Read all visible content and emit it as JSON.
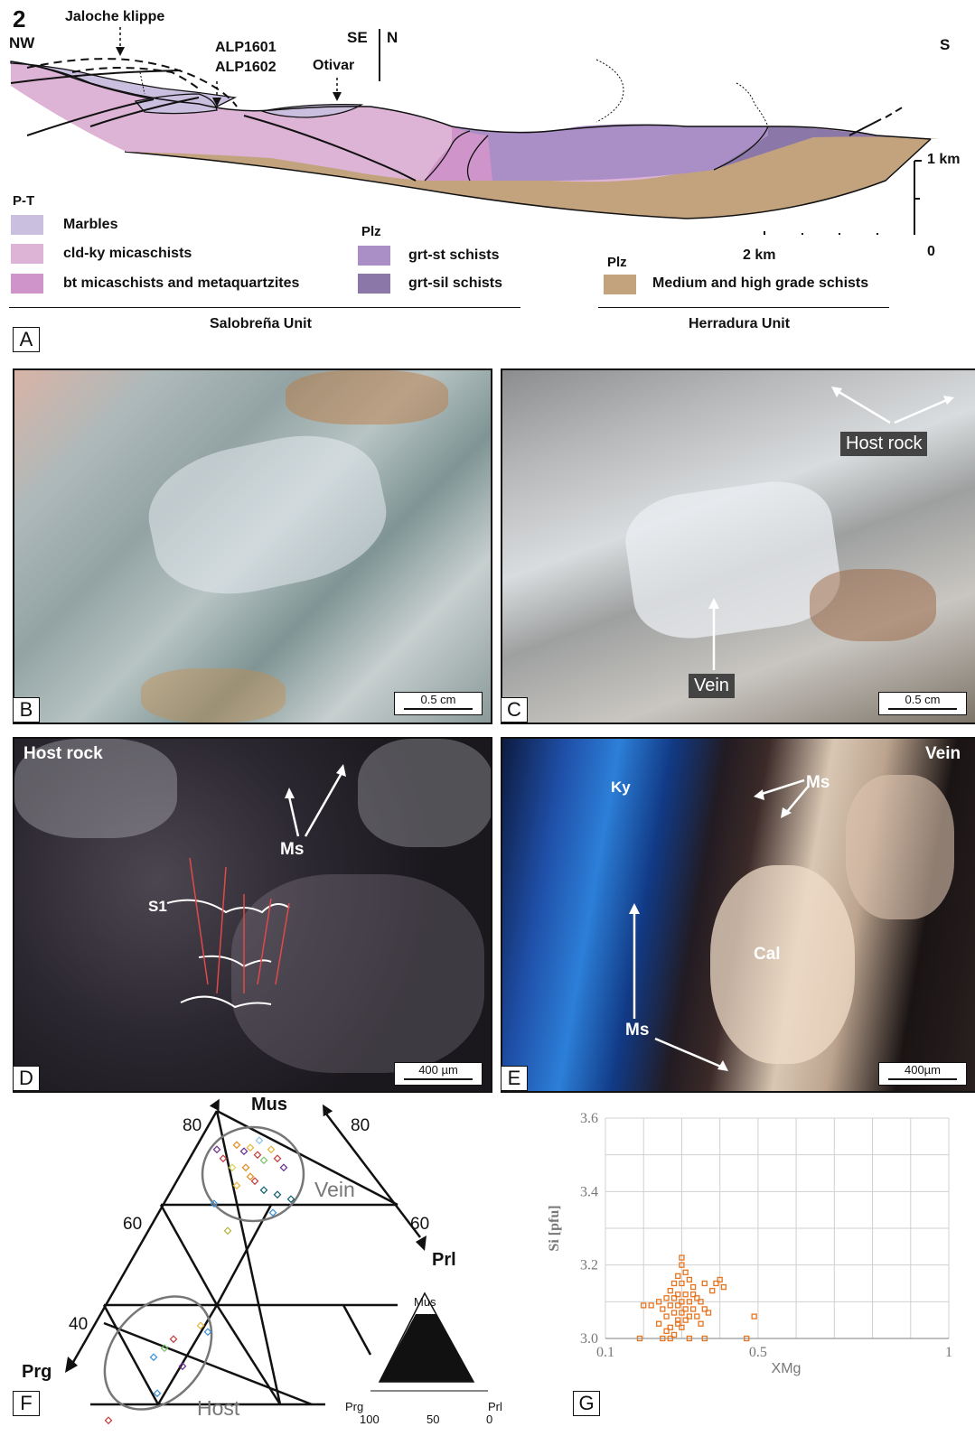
{
  "figure_number": "2",
  "panel_a": {
    "dir_nw": "NW",
    "dir_se": "SE",
    "dir_n": "N",
    "dir_s": "S",
    "klippe_label": "Jaloche klippe",
    "sample1": "ALP1601",
    "sample2": "ALP1602",
    "village": "Otivar",
    "vscale_label": "1 km",
    "hscale_label": "2 km",
    "scale_zero": "0",
    "group_pt": "P-T",
    "group_plz1": "Plz",
    "group_plz2": "Plz",
    "legend": [
      {
        "label": "Marbles",
        "color": "#cbbfe0"
      },
      {
        "label": "cld-ky micaschists",
        "color": "#ddb3d6"
      },
      {
        "label": "bt micaschists and metaquartzites",
        "color": "#cf94c9"
      },
      {
        "label": "grt-st schists",
        "color": "#a98fc6"
      },
      {
        "label": "grt-sil schists",
        "color": "#8b78a8"
      },
      {
        "label": "Medium and high grade schists",
        "color": "#c2a37e"
      }
    ],
    "unit_left": "Salobreña Unit",
    "unit_right": "Herradura Unit",
    "letter": "A"
  },
  "panel_b": {
    "letter": "B",
    "scale": "0.5 cm"
  },
  "panel_c": {
    "letter": "C",
    "scale": "0.5 cm",
    "host_rock": "Host rock",
    "vein": "Vein"
  },
  "panel_d": {
    "letter": "D",
    "scale": "400 µm",
    "title": "Host rock",
    "ms": "Ms",
    "s1": "S1"
  },
  "panel_e": {
    "letter": "E",
    "scale": "400µm",
    "title": "Vein",
    "ky": "Ky",
    "ms_top": "Ms",
    "ms_bottom": "Ms",
    "cal": "Cal"
  },
  "panel_f": {
    "letter": "F",
    "apex_top": "Mus",
    "apex_left": "Prg",
    "apex_right": "Prl",
    "tick_80_left": "80",
    "tick_80_right": "80",
    "tick_60_left": "60",
    "tick_60_right": "60",
    "tick_40_left": "40",
    "vein_label": "Vein",
    "host_label": "Host",
    "inset_top": "Mus",
    "inset_left": "Prg",
    "inset_right": "Prl",
    "inset_t100": "100",
    "inset_t50": "50",
    "inset_t0": "0"
  },
  "panel_g": {
    "letter": "G"
  },
  "chart_data": {
    "type": "scatter",
    "title": "",
    "xlabel": "XMg",
    "ylabel": "Si [pfu]",
    "xlim": [
      0.1,
      1
    ],
    "ylim": [
      3.0,
      3.6
    ],
    "x_ticks": [
      "0.1",
      "0.5",
      "1"
    ],
    "y_ticks": [
      "3.6",
      "3.4",
      "3.2",
      "3.0"
    ],
    "grid": true,
    "series": [
      {
        "color": "#e8741f",
        "points": [
          [
            0.3,
            3.22
          ],
          [
            0.3,
            3.2
          ],
          [
            0.31,
            3.18
          ],
          [
            0.29,
            3.17
          ],
          [
            0.32,
            3.16
          ],
          [
            0.28,
            3.15
          ],
          [
            0.3,
            3.15
          ],
          [
            0.33,
            3.14
          ],
          [
            0.36,
            3.15
          ],
          [
            0.39,
            3.15
          ],
          [
            0.4,
            3.16
          ],
          [
            0.41,
            3.14
          ],
          [
            0.38,
            3.13
          ],
          [
            0.27,
            3.13
          ],
          [
            0.29,
            3.12
          ],
          [
            0.31,
            3.12
          ],
          [
            0.33,
            3.12
          ],
          [
            0.34,
            3.11
          ],
          [
            0.26,
            3.11
          ],
          [
            0.28,
            3.11
          ],
          [
            0.3,
            3.1
          ],
          [
            0.32,
            3.1
          ],
          [
            0.35,
            3.1
          ],
          [
            0.24,
            3.1
          ],
          [
            0.27,
            3.09
          ],
          [
            0.29,
            3.09
          ],
          [
            0.31,
            3.08
          ],
          [
            0.33,
            3.08
          ],
          [
            0.36,
            3.08
          ],
          [
            0.25,
            3.08
          ],
          [
            0.22,
            3.09
          ],
          [
            0.2,
            3.09
          ],
          [
            0.28,
            3.07
          ],
          [
            0.3,
            3.07
          ],
          [
            0.32,
            3.06
          ],
          [
            0.34,
            3.06
          ],
          [
            0.37,
            3.07
          ],
          [
            0.26,
            3.06
          ],
          [
            0.29,
            3.05
          ],
          [
            0.31,
            3.05
          ],
          [
            0.49,
            3.06
          ],
          [
            0.24,
            3.04
          ],
          [
            0.27,
            3.03
          ],
          [
            0.3,
            3.03
          ],
          [
            0.26,
            3.02
          ],
          [
            0.28,
            3.01
          ],
          [
            0.25,
            3.0
          ],
          [
            0.27,
            3.0
          ],
          [
            0.32,
            3.0
          ],
          [
            0.36,
            3.0
          ],
          [
            0.19,
            3.0
          ],
          [
            0.47,
            3.0
          ],
          [
            0.29,
            3.04
          ],
          [
            0.35,
            3.04
          ]
        ]
      }
    ]
  }
}
